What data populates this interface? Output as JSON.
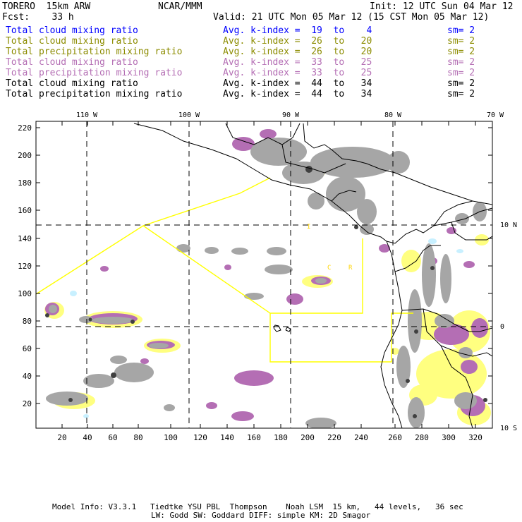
{
  "header": {
    "model": "TORERO  15km ARW",
    "org": "NCAR/MMM",
    "init": "Init: 12 UTC Sun 04 Mar 12",
    "fcst": "Fcst:    33 h",
    "valid": "Valid: 21 UTC Mon 05 Mar 12 (15 CST Mon 05 Mar 12)"
  },
  "legend": [
    {
      "field": "Total cloud mixing ratio",
      "avg": "Avg. k-index =  19  to    4",
      "sm": "sm= 2",
      "color": "#0000ff"
    },
    {
      "field": "Total cloud mixing ratio",
      "avg": "Avg. k-index =  26  to   20",
      "sm": "sm= 2",
      "color": "#8c8c00"
    },
    {
      "field": "Total precipitation mixing ratio",
      "avg": "Avg. k-index =  26  to   20",
      "sm": "sm= 2",
      "color": "#8c8c00"
    },
    {
      "field": "Total cloud mixing ratio",
      "avg": "Avg. k-index =  33  to   25",
      "sm": "sm= 2",
      "color": "#b46eb4"
    },
    {
      "field": "Total precipitation mixing ratio",
      "avg": "Avg. k-index =  33  to   25",
      "sm": "sm= 2",
      "color": "#b46eb4"
    },
    {
      "field": "Total cloud mixing ratio",
      "avg": "Avg. k-index =  44  to   34",
      "sm": "sm= 2",
      "color": "#000000"
    },
    {
      "field": "Total precipitation mixing ratio",
      "avg": "Avg. k-index =  44  to   34",
      "sm": "sm= 2",
      "color": "#000000"
    }
  ],
  "axes": {
    "x_ticks": [
      "20",
      "40",
      "60",
      "80",
      "100",
      "120",
      "140",
      "160",
      "180",
      "200",
      "220",
      "240",
      "260",
      "280",
      "300",
      "320"
    ],
    "y_ticks": [
      "20",
      "40",
      "60",
      "80",
      "100",
      "120",
      "140",
      "160",
      "180",
      "200",
      "220"
    ],
    "lon_labels": [
      "110 W",
      "100 W",
      "90 W",
      "80 W",
      "70 W"
    ],
    "lat_labels": [
      "10 N",
      "0",
      "10 S"
    ]
  },
  "overlay_letters": [
    "I",
    "C",
    "R"
  ],
  "footer": {
    "line1": "Model Info: V3.3.1   Tiedtke YSU PBL  Thompson    Noah LSM  15 km,   44 levels,   36 sec",
    "line2": "LW: Godd SW: Goddard DIFF: simple KM: 2D Smagor"
  },
  "colors": {
    "gray_cloud": "#a6a6a6",
    "purple_cloud": "#b46eb4",
    "yellow_cloud": "#ffff80",
    "light_blue": "#c8f0ff",
    "domain_lines": "#ffff00"
  }
}
